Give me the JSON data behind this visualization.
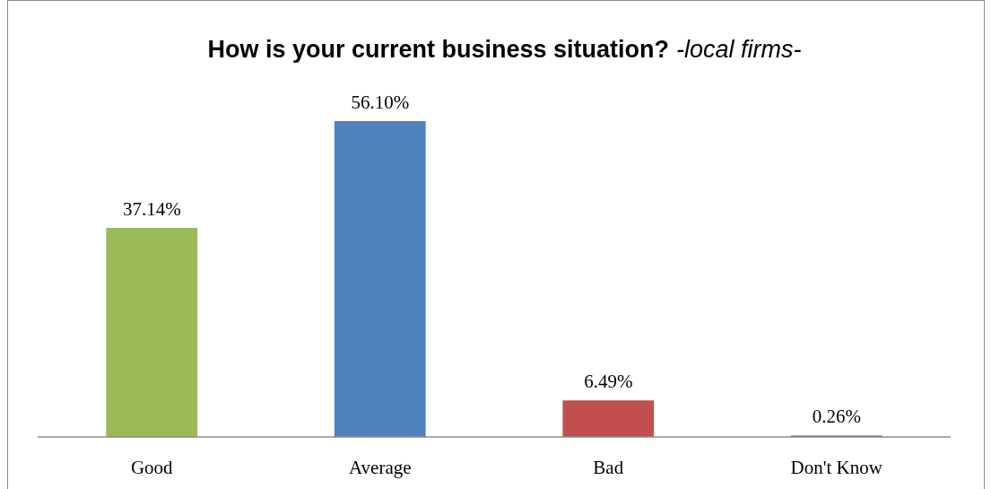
{
  "chart_data": {
    "type": "bar",
    "title": "How is your current business situation?",
    "subtitle": "-local firms-",
    "categories": [
      "Good",
      "Average",
      "Bad",
      "Don't Know"
    ],
    "values": [
      37.14,
      56.1,
      6.49,
      0.26
    ],
    "colors": [
      "#9bbb59",
      "#4f81bd",
      "#c0504d",
      "#8064a2"
    ],
    "value_labels": [
      "37.14%",
      "56.10%",
      "6.49%",
      "0.26%"
    ]
  }
}
